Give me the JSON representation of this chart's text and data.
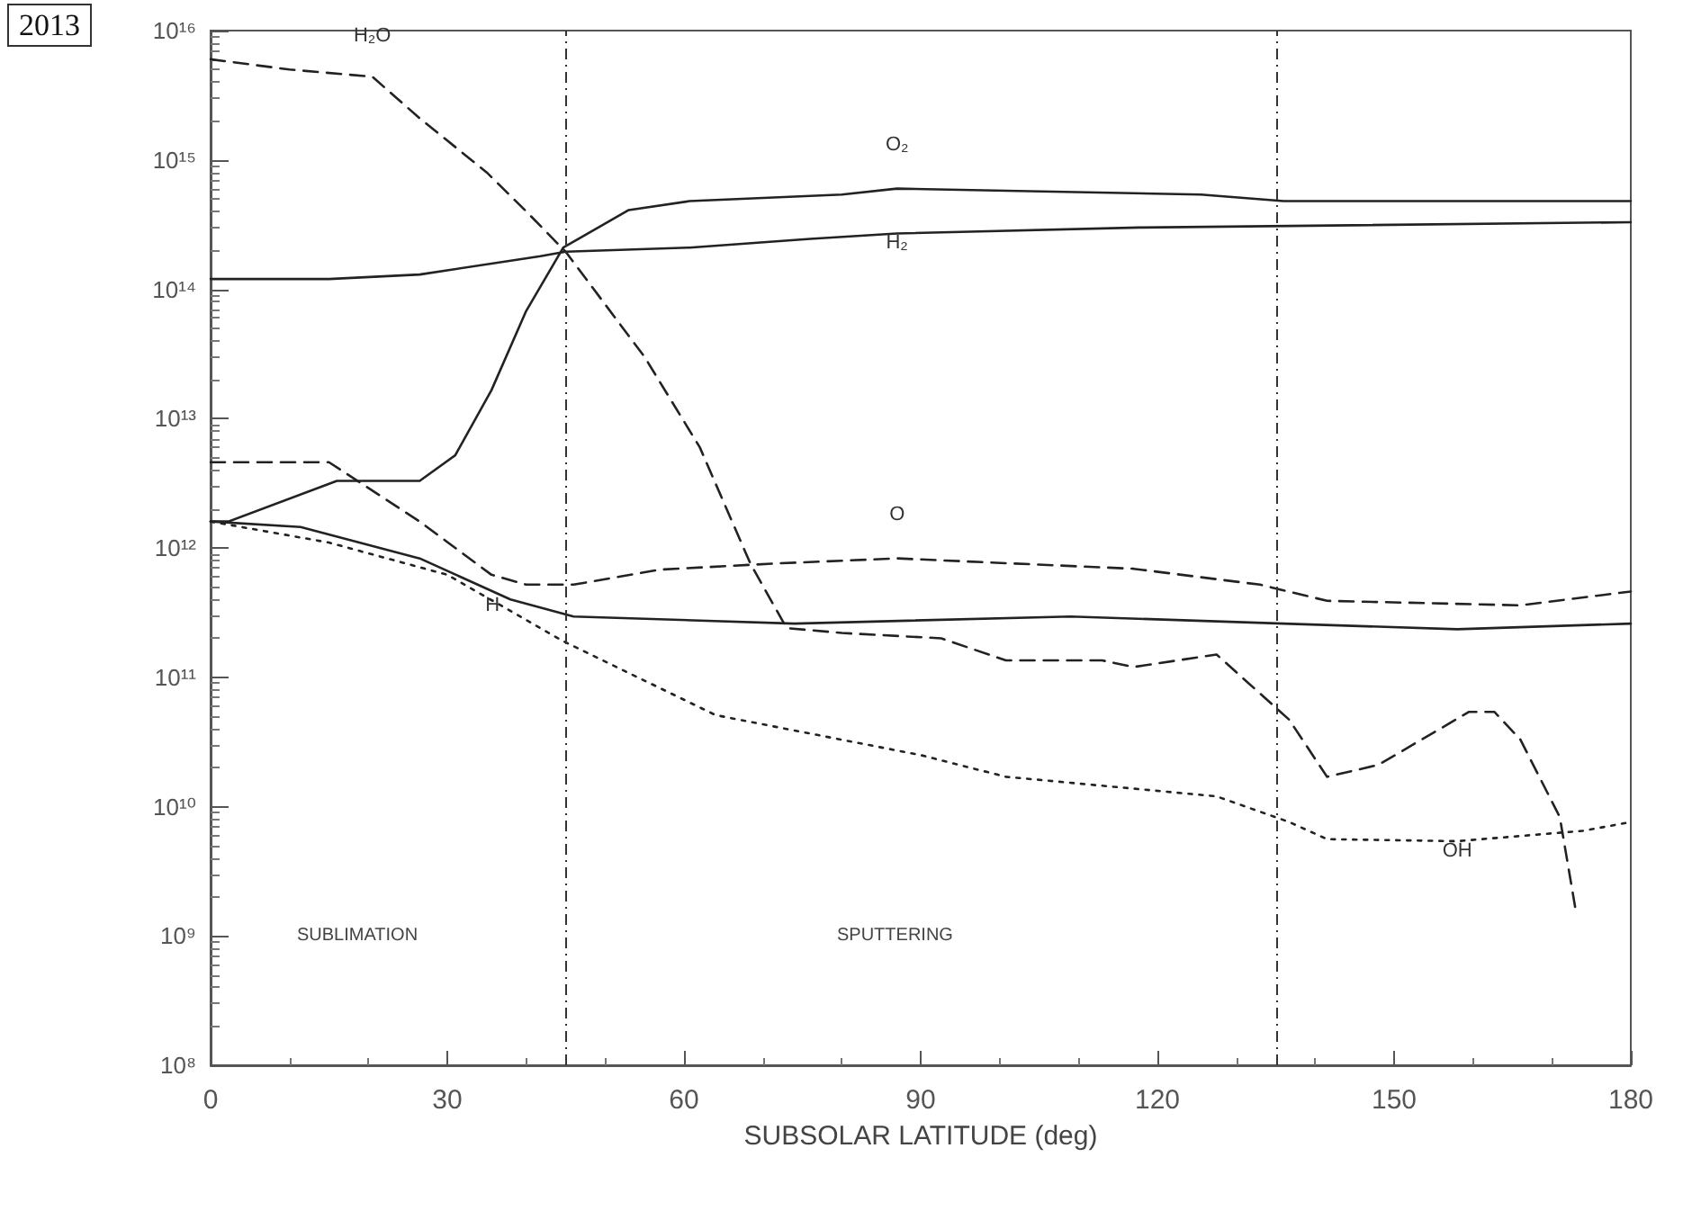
{
  "chart_data": {
    "type": "line",
    "xlabel": "SUBSOLAR LATITUDE (deg)",
    "log": "y",
    "xlim": [
      0,
      180
    ],
    "xticks": [
      0,
      30,
      60,
      90,
      120,
      150,
      180
    ],
    "ylim": [
      100000000.0,
      1e+16
    ],
    "yticks": [
      {
        "value": 100000000.0,
        "label": "10⁸"
      },
      {
        "value": 1000000000.0,
        "label": "10⁹"
      },
      {
        "value": 10000000000.0,
        "label": "10¹⁰"
      },
      {
        "value": 100000000000.0,
        "label": "10¹¹"
      },
      {
        "value": 1000000000000.0,
        "label": "10¹²"
      },
      {
        "value": 10000000000000.0,
        "label": "10¹³"
      },
      {
        "value": 100000000000000.0,
        "label": "10¹⁴"
      },
      {
        "value": 1000000000000000.0,
        "label": "10¹⁵"
      },
      {
        "value": 1e+16,
        "label": "10¹⁶"
      }
    ],
    "grid": false,
    "legend": false,
    "marker": "none",
    "series": [
      {
        "name": "H₂O",
        "color": "#222222",
        "line_style": "dashed",
        "x": [
          0,
          10,
          20.5,
          26.5,
          35,
          40,
          45,
          55,
          62,
          68.4,
          73,
          80,
          92.6,
          100.8,
          113,
          117,
          127.5,
          136.7,
          141.5,
          148,
          159.5,
          162.7,
          166,
          171,
          173
        ],
        "values": [
          6000000000000000.0,
          5000000000000000.0,
          4400000000000000.0,
          2100000000000000.0,
          800000000000000.0,
          400000000000000.0,
          195000000000000.0,
          30000000000000.0,
          6000000000000.0,
          760000000000.0,
          240000000000.0,
          220000000000.0,
          200000000000.0,
          135000000000.0,
          135000000000.0,
          120000000000.0,
          150000000000.0,
          47000000000.0,
          17000000000.0,
          21000000000.0,
          54000000000.0,
          54000000000.0,
          33000000000.0,
          8300000000.0,
          1600000000.0
        ]
      },
      {
        "name": "O₂",
        "color": "#222222",
        "line_style": "solid",
        "x": [
          0,
          2.3,
          16,
          26.5,
          31,
          35.6,
          40,
          44.7,
          53,
          60.7,
          80,
          87,
          125.5,
          136,
          180
        ],
        "values": [
          1600000000000.0,
          1600000000000.0,
          3300000000000.0,
          3300000000000.0,
          5200000000000.0,
          16600000000000.0,
          68000000000000.0,
          210000000000000.0,
          410000000000000.0,
          480000000000000.0,
          540000000000000.0,
          600000000000000.0,
          540000000000000.0,
          480000000000000.0,
          480000000000000.0
        ]
      },
      {
        "name": "H₂",
        "color": "#222222",
        "line_style": "solid",
        "x": [
          0,
          15,
          26.5,
          41.8,
          45,
          60.7,
          76,
          87,
          117.7,
          180
        ],
        "values": [
          120000000000000.0,
          120000000000000.0,
          130000000000000.0,
          180000000000000.0,
          195000000000000.0,
          210000000000000.0,
          245000000000000.0,
          270000000000000.0,
          300000000000000.0,
          330000000000000.0
        ]
      },
      {
        "name": "O",
        "color": "#222222",
        "line_style": "dashed",
        "x": [
          0,
          15,
          26.5,
          35.6,
          40,
          46,
          57,
          72,
          87,
          117,
          133,
          141.5,
          166,
          180
        ],
        "values": [
          4600000000000.0,
          4600000000000.0,
          1600000000000.0,
          620000000000.0,
          520000000000.0,
          520000000000.0,
          680000000000.0,
          760000000000.0,
          830000000000.0,
          690000000000.0,
          520000000000.0,
          390000000000.0,
          360000000000.0,
          460000000000.0
        ]
      },
      {
        "name": "H",
        "color": "#222222",
        "line_style": "solid",
        "x": [
          0,
          11.4,
          26.5,
          38,
          46,
          74,
          109,
          136,
          158,
          180
        ],
        "values": [
          1600000000000.0,
          1450000000000.0,
          830000000000.0,
          400000000000.0,
          295000000000.0,
          260000000000.0,
          295000000000.0,
          260000000000.0,
          235000000000.0,
          260000000000.0
        ]
      },
      {
        "name": "OH",
        "color": "#222222",
        "line_style": "dotted",
        "x": [
          0,
          15,
          30,
          44.7,
          64,
          90,
          100.8,
          127.5,
          136.7,
          141.5,
          158,
          174,
          180
        ],
        "values": [
          1600000000000.0,
          1100000000000.0,
          620000000000.0,
          190000000000.0,
          51000000000.0,
          25000000000.0,
          17000000000.0,
          12000000000.0,
          7600000000.0,
          5600000000.0,
          5400000000.0,
          6500000000.0,
          7600000000.0
        ]
      }
    ],
    "ref_lines": [
      {
        "axis": "x",
        "value": 45,
        "line_style": "dashed"
      },
      {
        "axis": "x",
        "value": 135,
        "line_style": "dashed"
      }
    ],
    "annotations": [
      "2013",
      "SUBLIMATION",
      "SPUTTERING"
    ]
  }
}
